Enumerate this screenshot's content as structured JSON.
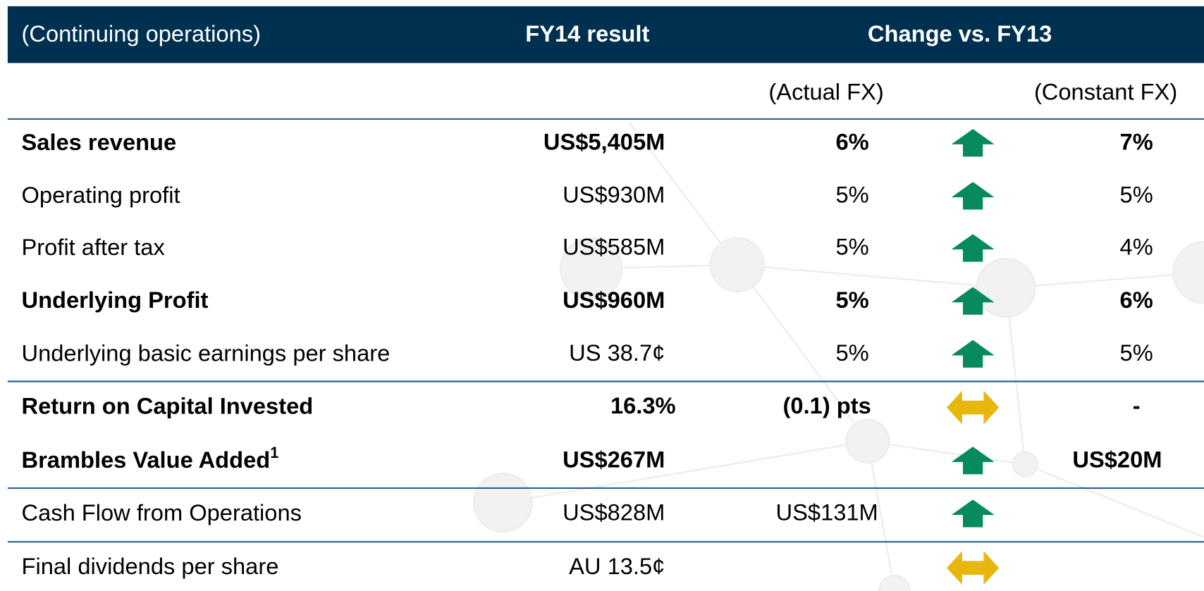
{
  "header": {
    "label": "(Continuing operations)",
    "fy14": "FY14 result",
    "change": "Change vs. FY13"
  },
  "subheader": {
    "actual": "(Actual FX)",
    "constant": "(Constant FX)"
  },
  "table": {
    "rows": [
      {
        "label": "Sales revenue",
        "bold": true,
        "fy14": "US$5,405M",
        "actual": "6%",
        "trend": "up",
        "constant": "7%"
      },
      {
        "label": "Operating profit",
        "bold": false,
        "fy14": "US$930M",
        "actual": "5%",
        "trend": "up",
        "constant": "5%"
      },
      {
        "label": "Profit after tax",
        "bold": false,
        "fy14": "US$585M",
        "actual": "5%",
        "trend": "up",
        "constant": "4%"
      },
      {
        "label": "Underlying Profit",
        "bold": true,
        "fy14": "US$960M",
        "actual": "5%",
        "trend": "up",
        "constant": "6%"
      },
      {
        "label": "Underlying basic earnings per share",
        "bold": false,
        "fy14": "US 38.7¢",
        "actual": "5%",
        "trend": "up",
        "constant": "5%"
      },
      {
        "label": "Return on Capital Invested",
        "bold": true,
        "fy14": "16.3%",
        "actual": "(0.1) pts",
        "trend": "flat",
        "constant": "-"
      },
      {
        "label": "Brambles Value Added",
        "footnote": "1",
        "bold": true,
        "fy14": "US$267M",
        "actual": null,
        "trend": "up",
        "constant": "US$20M"
      },
      {
        "label": "Cash Flow from Operations",
        "bold": false,
        "fy14": "US$828M",
        "actual": "US$131M",
        "trend": "up",
        "constant": null
      },
      {
        "label": "Final dividends per share",
        "bold": false,
        "fy14": "AU 13.5¢",
        "actual": null,
        "trend": "flat",
        "constant": null
      }
    ]
  }
}
